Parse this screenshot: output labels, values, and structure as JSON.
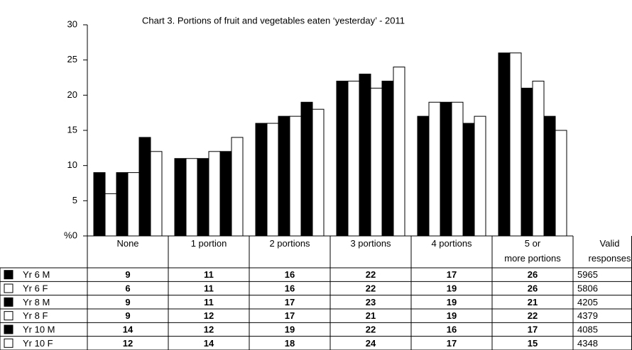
{
  "chart_data": {
    "type": "bar",
    "title": "Chart 3. Portions of fruit and vegetables eaten ‘yesterday’ - 2011",
    "y_label": "%",
    "categories": [
      "None",
      "1 portion",
      "2 portions",
      "3 portions",
      "4 portions",
      "5 or\nmore portions"
    ],
    "valid_responses_label": "Valid\nresponses",
    "series": [
      {
        "name": "Yr 6 M",
        "color": "#000000",
        "values": [
          9,
          11,
          16,
          22,
          17,
          26
        ],
        "valid_responses": 5965
      },
      {
        "name": "Yr 6 F",
        "color": "#ffffff",
        "values": [
          6,
          11,
          16,
          22,
          19,
          26
        ],
        "valid_responses": 5806
      },
      {
        "name": "Yr 8 M",
        "color": "#000000",
        "values": [
          9,
          11,
          17,
          23,
          19,
          21
        ],
        "valid_responses": 4205
      },
      {
        "name": "Yr 8 F",
        "color": "#ffffff",
        "values": [
          9,
          12,
          17,
          21,
          19,
          22
        ],
        "valid_responses": 4379
      },
      {
        "name": "Yr 10 M",
        "color": "#000000",
        "values": [
          14,
          12,
          19,
          22,
          16,
          17
        ],
        "valid_responses": 4085
      },
      {
        "name": "Yr 10 F",
        "color": "#ffffff",
        "values": [
          12,
          14,
          18,
          24,
          17,
          15
        ],
        "valid_responses": 4348
      }
    ],
    "ylim": [
      0,
      30
    ],
    "yticks": [
      0,
      5,
      10,
      15,
      20,
      25,
      30
    ],
    "grid": false
  }
}
